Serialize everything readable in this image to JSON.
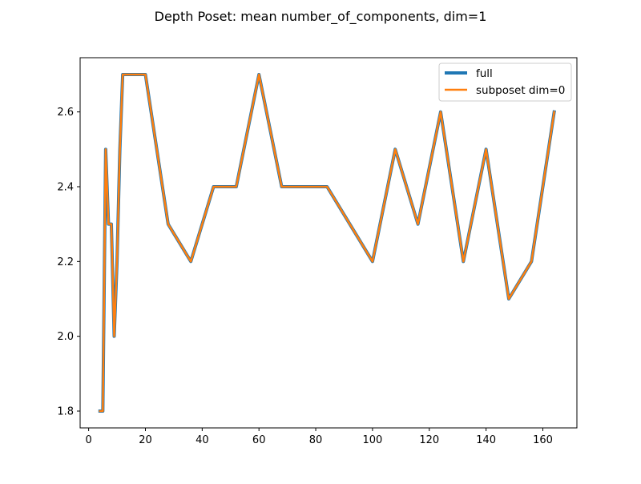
{
  "chart_data": {
    "type": "line",
    "title": "Depth Poset: mean number_of_components, dim=1",
    "xlabel": "",
    "ylabel": "",
    "xlim": [
      -3.0,
      172.0
    ],
    "ylim": [
      1.755,
      2.745
    ],
    "xticks": [
      0,
      20,
      40,
      60,
      80,
      100,
      120,
      140,
      160
    ],
    "yticks": [
      1.8,
      2.0,
      2.2,
      2.4,
      2.6
    ],
    "ytick_labels": [
      "1.8",
      "2.0",
      "2.2",
      "2.4",
      "2.6"
    ],
    "grid": false,
    "legend_position": "upper right",
    "x": [
      4,
      5,
      6,
      7,
      8,
      9,
      10,
      11,
      12,
      16,
      20,
      28,
      36,
      44,
      52,
      60,
      68,
      76,
      84,
      92,
      100,
      108,
      116,
      124,
      132,
      140,
      148,
      156,
      164
    ],
    "series": [
      {
        "name": "full",
        "color": "#1f77b4",
        "values": [
          1.8,
          1.8,
          2.5,
          2.3,
          2.3,
          2.0,
          2.2,
          2.5,
          2.7,
          2.7,
          2.7,
          2.3,
          2.2,
          2.4,
          2.4,
          2.7,
          2.4,
          2.4,
          2.4,
          2.3,
          2.2,
          2.5,
          2.3,
          2.6,
          2.2,
          2.5,
          2.1,
          2.2,
          2.6
        ]
      },
      {
        "name": "subposet dim=0",
        "color": "#ff7f0e",
        "values": [
          1.8,
          1.8,
          2.5,
          2.3,
          2.3,
          2.0,
          2.2,
          2.5,
          2.7,
          2.7,
          2.7,
          2.3,
          2.2,
          2.4,
          2.4,
          2.7,
          2.4,
          2.4,
          2.4,
          2.3,
          2.2,
          2.5,
          2.3,
          2.6,
          2.2,
          2.5,
          2.1,
          2.2,
          2.6
        ]
      }
    ]
  }
}
